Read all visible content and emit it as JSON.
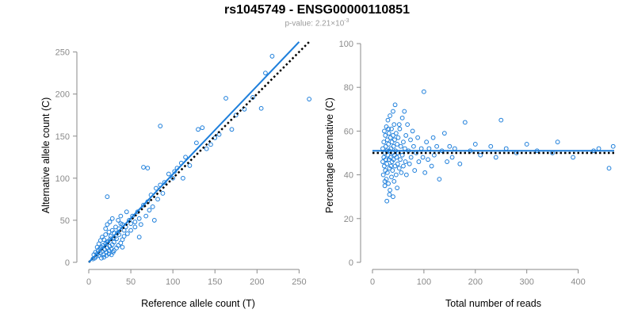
{
  "title": "rs1045749 - ENSG00000110851",
  "subtitle_prefix": "p-value: 2.21×10",
  "subtitle_exponent": "-3",
  "colors": {
    "points": "#1e7fdb",
    "fit": "#1e7fdb",
    "null": "#000000",
    "axis": "#8a8a8a"
  },
  "chart_data": [
    {
      "type": "scatter",
      "title": "",
      "xlabel": "Reference allele count (T)",
      "ylabel": "Alternative allele count (C)",
      "xlim": [
        0,
        260
      ],
      "ylim": [
        0,
        260
      ],
      "xticks": [
        0,
        50,
        100,
        150,
        200,
        250
      ],
      "yticks": [
        0,
        50,
        100,
        150,
        200,
        250
      ],
      "fit_line": {
        "x": [
          0,
          250
        ],
        "y": [
          0,
          262
        ]
      },
      "null_line": {
        "x": [
          0,
          262
        ],
        "y": [
          0,
          262
        ]
      },
      "points": [
        [
          5,
          4
        ],
        [
          6,
          9
        ],
        [
          7,
          5
        ],
        [
          8,
          12
        ],
        [
          9,
          7
        ],
        [
          10,
          10
        ],
        [
          11,
          14
        ],
        [
          12,
          8
        ],
        [
          13,
          16
        ],
        [
          14,
          11
        ],
        [
          15,
          18
        ],
        [
          16,
          13
        ],
        [
          17,
          20
        ],
        [
          18,
          9
        ],
        [
          19,
          15
        ],
        [
          20,
          22
        ],
        [
          21,
          12
        ],
        [
          22,
          17
        ],
        [
          23,
          25
        ],
        [
          24,
          14
        ],
        [
          25,
          19
        ],
        [
          26,
          28
        ],
        [
          27,
          16
        ],
        [
          28,
          21
        ],
        [
          29,
          12
        ],
        [
          30,
          24
        ],
        [
          10,
          18
        ],
        [
          12,
          22
        ],
        [
          14,
          26
        ],
        [
          16,
          30
        ],
        [
          18,
          27
        ],
        [
          20,
          33
        ],
        [
          22,
          24
        ],
        [
          24,
          36
        ],
        [
          26,
          31
        ],
        [
          28,
          38
        ],
        [
          30,
          29
        ],
        [
          32,
          42
        ],
        [
          34,
          35
        ],
        [
          36,
          40
        ],
        [
          38,
          46
        ],
        [
          15,
          5
        ],
        [
          18,
          6
        ],
        [
          21,
          8
        ],
        [
          24,
          10
        ],
        [
          27,
          9
        ],
        [
          30,
          14
        ],
        [
          33,
          17
        ],
        [
          35,
          20
        ],
        [
          38,
          23
        ],
        [
          40,
          27
        ],
        [
          42,
          31
        ],
        [
          35,
          50
        ],
        [
          38,
          55
        ],
        [
          40,
          45
        ],
        [
          42,
          38
        ],
        [
          20,
          40
        ],
        [
          22,
          45
        ],
        [
          25,
          48
        ],
        [
          28,
          52
        ],
        [
          22,
          78
        ],
        [
          30,
          35
        ],
        [
          33,
          28
        ],
        [
          36,
          33
        ],
        [
          44,
          42
        ],
        [
          46,
          34
        ],
        [
          48,
          50
        ],
        [
          50,
          46
        ],
        [
          52,
          55
        ],
        [
          55,
          48
        ],
        [
          58,
          60
        ],
        [
          60,
          52
        ],
        [
          62,
          45
        ],
        [
          65,
          68
        ],
        [
          68,
          55
        ],
        [
          70,
          72
        ],
        [
          72,
          62
        ],
        [
          74,
          80
        ],
        [
          76,
          66
        ],
        [
          78,
          50
        ],
        [
          80,
          88
        ],
        [
          82,
          75
        ],
        [
          85,
          92
        ],
        [
          88,
          82
        ],
        [
          90,
          95
        ],
        [
          65,
          113
        ],
        [
          70,
          112
        ],
        [
          85,
          162
        ],
        [
          95,
          105
        ],
        [
          100,
          100
        ],
        [
          102,
          108
        ],
        [
          105,
          112
        ],
        [
          110,
          118
        ],
        [
          112,
          100
        ],
        [
          115,
          125
        ],
        [
          120,
          115
        ],
        [
          128,
          142
        ],
        [
          130,
          158
        ],
        [
          135,
          160
        ],
        [
          140,
          135
        ],
        [
          145,
          140
        ],
        [
          150,
          148
        ],
        [
          155,
          152
        ],
        [
          163,
          195
        ],
        [
          170,
          158
        ],
        [
          175,
          175
        ],
        [
          185,
          182
        ],
        [
          195,
          196
        ],
        [
          205,
          183
        ],
        [
          210,
          225
        ],
        [
          218,
          245
        ],
        [
          262,
          194
        ],
        [
          45,
          60
        ],
        [
          50,
          38
        ],
        [
          55,
          42
        ],
        [
          60,
          30
        ],
        [
          40,
          18
        ]
      ]
    },
    {
      "type": "scatter",
      "title": "",
      "xlabel": "Total number of reads",
      "ylabel": "Percentage alternative (C)",
      "xlim": [
        0,
        470
      ],
      "ylim": [
        0,
        100
      ],
      "xticks": [
        0,
        100,
        200,
        300,
        400
      ],
      "yticks": [
        0,
        20,
        40,
        60,
        80,
        100
      ],
      "fit_line": {
        "x": [
          0,
          470
        ],
        "y": [
          51,
          51
        ]
      },
      "null_line": {
        "x": [
          0,
          470
        ],
        "y": [
          50,
          50
        ]
      },
      "points": [
        [
          20,
          46
        ],
        [
          20,
          52
        ],
        [
          21,
          40
        ],
        [
          22,
          55
        ],
        [
          22,
          48
        ],
        [
          23,
          60
        ],
        [
          23,
          44
        ],
        [
          24,
          50
        ],
        [
          24,
          35
        ],
        [
          25,
          58
        ],
        [
          25,
          42
        ],
        [
          26,
          53
        ],
        [
          26,
          47
        ],
        [
          27,
          62
        ],
        [
          27,
          38
        ],
        [
          28,
          51
        ],
        [
          28,
          45
        ],
        [
          29,
          56
        ],
        [
          29,
          41
        ],
        [
          30,
          49
        ],
        [
          30,
          65
        ],
        [
          31,
          36
        ],
        [
          31,
          54
        ],
        [
          32,
          47
        ],
        [
          32,
          59
        ],
        [
          33,
          43
        ],
        [
          33,
          51
        ],
        [
          34,
          67
        ],
        [
          34,
          33
        ],
        [
          35,
          48
        ],
        [
          35,
          57
        ],
        [
          36,
          44
        ],
        [
          36,
          52
        ],
        [
          37,
          61
        ],
        [
          37,
          39
        ],
        [
          38,
          46
        ],
        [
          38,
          55
        ],
        [
          39,
          50
        ],
        [
          39,
          42
        ],
        [
          40,
          58
        ],
        [
          40,
          30
        ],
        [
          41,
          47
        ],
        [
          41,
          53
        ],
        [
          42,
          63
        ],
        [
          42,
          37
        ],
        [
          43,
          49
        ],
        [
          43,
          56
        ],
        [
          44,
          44
        ],
        [
          44,
          72
        ],
        [
          45,
          51
        ],
        [
          46,
          40
        ],
        [
          46,
          59
        ],
        [
          47,
          48
        ],
        [
          48,
          54
        ],
        [
          48,
          34
        ],
        [
          49,
          45
        ],
        [
          50,
          57
        ],
        [
          50,
          50
        ],
        [
          52,
          43
        ],
        [
          53,
          61
        ],
        [
          54,
          47
        ],
        [
          55,
          53
        ],
        [
          56,
          41
        ],
        [
          58,
          66
        ],
        [
          58,
          49
        ],
        [
          60,
          55
        ],
        [
          60,
          44
        ],
        [
          62,
          69
        ],
        [
          63,
          52
        ],
        [
          64,
          46
        ],
        [
          65,
          58
        ],
        [
          66,
          40
        ],
        [
          68,
          63
        ],
        [
          70,
          51
        ],
        [
          72,
          45
        ],
        [
          74,
          56
        ],
        [
          75,
          48
        ],
        [
          78,
          60
        ],
        [
          80,
          53
        ],
        [
          82,
          42
        ],
        [
          85,
          50
        ],
        [
          88,
          57
        ],
        [
          90,
          46
        ],
        [
          95,
          52
        ],
        [
          98,
          48
        ],
        [
          100,
          78
        ],
        [
          102,
          41
        ],
        [
          105,
          55
        ],
        [
          108,
          47
        ],
        [
          110,
          52
        ],
        [
          115,
          44
        ],
        [
          118,
          57
        ],
        [
          120,
          49
        ],
        [
          125,
          53
        ],
        [
          130,
          38
        ],
        [
          135,
          51
        ],
        [
          140,
          59
        ],
        [
          145,
          46
        ],
        [
          150,
          53
        ],
        [
          155,
          48
        ],
        [
          160,
          52
        ],
        [
          170,
          45
        ],
        [
          180,
          64
        ],
        [
          190,
          51
        ],
        [
          200,
          54
        ],
        [
          210,
          49
        ],
        [
          230,
          53
        ],
        [
          240,
          48
        ],
        [
          250,
          65
        ],
        [
          260,
          52
        ],
        [
          280,
          50
        ],
        [
          300,
          54
        ],
        [
          320,
          51
        ],
        [
          350,
          50
        ],
        [
          360,
          55
        ],
        [
          390,
          48
        ],
        [
          430,
          51
        ],
        [
          440,
          52
        ],
        [
          460,
          43
        ],
        [
          468,
          53
        ],
        [
          28,
          28
        ],
        [
          33,
          31
        ],
        [
          40,
          69
        ],
        [
          52,
          63
        ],
        [
          24,
          37
        ],
        [
          31,
          61
        ]
      ]
    }
  ]
}
